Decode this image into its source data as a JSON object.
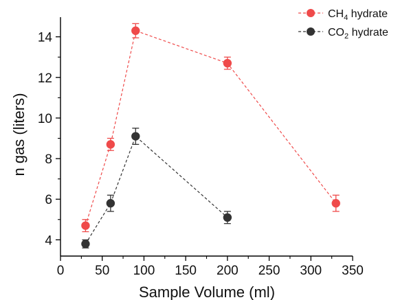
{
  "chart_data": {
    "type": "line",
    "xlabel": "Sample Volume (ml)",
    "ylabel": "n gas (liters)",
    "xlim": [
      0,
      350
    ],
    "ylim": [
      3.2,
      14.9
    ],
    "xticks": [
      "0",
      "50",
      "100",
      "150",
      "200",
      "250",
      "300",
      "350"
    ],
    "xtick_values": [
      0,
      50,
      100,
      150,
      200,
      250,
      300,
      350
    ],
    "yticks": [
      "4",
      "6",
      "8",
      "10",
      "12",
      "14"
    ],
    "ytick_values": [
      4,
      6,
      8,
      10,
      12,
      14
    ],
    "grid": false,
    "legend_position": "top-right",
    "series": [
      {
        "name_main": "CH",
        "name_sub": "4",
        "name_rest": " hydrate",
        "color": "#ef4a4a",
        "x": [
          30,
          60,
          90,
          200,
          330
        ],
        "y": [
          4.7,
          8.7,
          14.3,
          12.7,
          5.8
        ],
        "err": [
          0.3,
          0.3,
          0.35,
          0.3,
          0.4
        ]
      },
      {
        "name_main": "CO",
        "name_sub": "2",
        "name_rest": " hydrate",
        "color": "#333333",
        "x": [
          30,
          60,
          90,
          200
        ],
        "y": [
          3.8,
          5.8,
          9.1,
          5.1
        ],
        "err": [
          0.2,
          0.4,
          0.4,
          0.3
        ]
      }
    ]
  }
}
